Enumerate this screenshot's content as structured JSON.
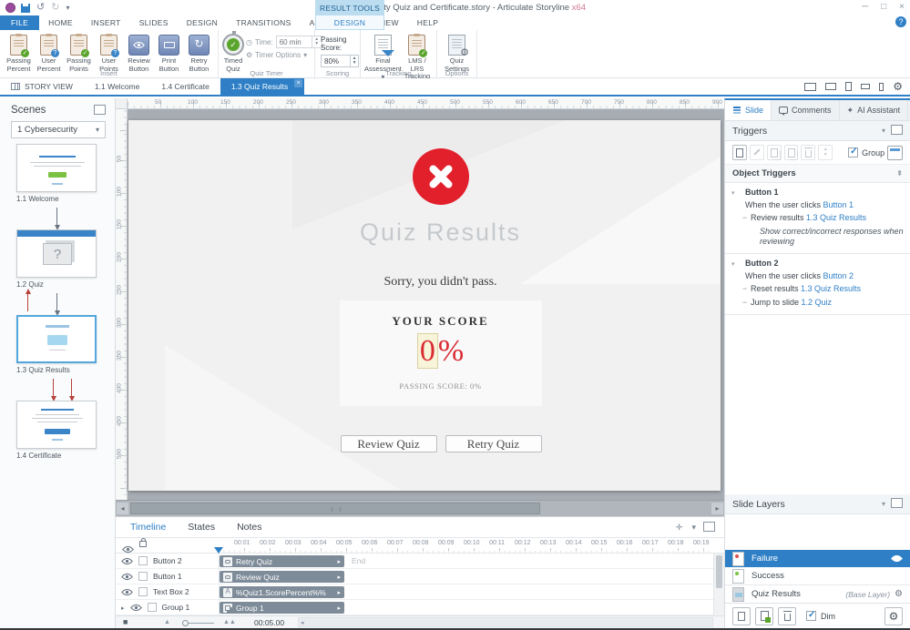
{
  "titlebar": {
    "title": "FP Cybersecurity Quiz and Certificate.story - Articulate Storyline",
    "title_suffix": "x64",
    "contextual_tab": "RESULT TOOLS",
    "window_buttons": {
      "minimize": "─",
      "maximize": "□",
      "close": "×"
    },
    "help_icon": "?"
  },
  "menu": {
    "tabs": [
      "FILE",
      "HOME",
      "INSERT",
      "SLIDES",
      "DESIGN",
      "TRANSITIONS",
      "ANIMATIONS",
      "VIEW",
      "HELP"
    ],
    "contextual_tab": "DESIGN"
  },
  "ribbon": {
    "insert": {
      "group_label": "Insert",
      "items": [
        {
          "line1": "Passing",
          "line2": "Percent",
          "icon": "clipboard-check"
        },
        {
          "line1": "User",
          "line2": "Percent",
          "icon": "clipboard-question"
        },
        {
          "line1": "Passing",
          "line2": "Points",
          "icon": "clipboard-check"
        },
        {
          "line1": "User",
          "line2": "Points",
          "icon": "clipboard-question"
        },
        {
          "line1": "Review",
          "line2": "Button",
          "icon": "eye-button"
        },
        {
          "line1": "Print",
          "line2": "Button",
          "icon": "print-button"
        },
        {
          "line1": "Retry",
          "line2": "Button",
          "icon": "retry-button"
        }
      ]
    },
    "quiz_timer": {
      "group_label": "Quiz Timer",
      "timed_quiz": "Timed Quiz",
      "time_label": "Time:",
      "time_value": "60 min",
      "timer_options": "Timer Options"
    },
    "scoring": {
      "group_label": "Scoring",
      "passing_score_label": "Passing Score:",
      "passing_score_value": "80%"
    },
    "tracking": {
      "group_label": "Tracking",
      "final_line1": "Final",
      "final_line2": "Assessment",
      "lms_line1": "LMS / LRS",
      "lms_line2": "Tracking"
    },
    "options": {
      "group_label": "Options",
      "quiz_settings_line1": "Quiz",
      "quiz_settings_line2": "Settings"
    }
  },
  "doc_tabs": {
    "story_view": "STORY VIEW",
    "tabs": [
      "1.1 Welcome",
      "1.4 Certificate"
    ],
    "active_tab": "1.3 Quiz Results",
    "close_glyph": "×"
  },
  "scenes": {
    "title": "Scenes",
    "dropdown_value": "1 Cybersecurity",
    "slides": [
      {
        "label": "1.1 Welcome",
        "type": "welcome"
      },
      {
        "label": "1.2 Quiz",
        "type": "quiz"
      },
      {
        "label": "1.3 Quiz Results",
        "type": "results",
        "selected": true
      },
      {
        "label": "1.4 Certificate",
        "type": "cert"
      }
    ]
  },
  "canvas": {
    "ruler_h": [
      "50",
      "100",
      "150",
      "200",
      "250",
      "300",
      "350",
      "400",
      "450",
      "500",
      "550",
      "600",
      "650",
      "700",
      "750",
      "800",
      "850",
      "900"
    ],
    "ruler_v": [
      "50",
      "100",
      "150",
      "200",
      "250",
      "300",
      "350",
      "400",
      "450",
      "500"
    ]
  },
  "slide": {
    "title": "Quiz Results",
    "message": "Sorry, you didn't pass.",
    "score_label": "YOUR SCORE",
    "score_value_highlight": "0",
    "score_value_rest": "%",
    "passing_line": "PASSING SCORE: 0%",
    "review_button": "Review Quiz",
    "retry_button": "Retry Quiz"
  },
  "right_panel": {
    "tabs": [
      "Slide",
      "Comments",
      "AI Assistant"
    ],
    "triggers_title": "Triggers",
    "group_checkbox_label": "Group",
    "object_triggers_title": "Object Triggers",
    "sections": [
      {
        "title": "Button 1",
        "lines": [
          {
            "kind": "event",
            "text": "When the user clicks ",
            "link": "Button 1"
          },
          {
            "kind": "action",
            "text": "Review results ",
            "link": "1.3 Quiz Results"
          },
          {
            "kind": "note",
            "text": "Show correct/incorrect responses when reviewing"
          }
        ]
      },
      {
        "title": "Button 2",
        "lines": [
          {
            "kind": "event",
            "text": "When the user clicks ",
            "link": "Button 2"
          },
          {
            "kind": "action",
            "text": "Reset results ",
            "link": "1.3 Quiz Results"
          },
          {
            "kind": "action",
            "text": "Jump to slide ",
            "link": "1.2 Quiz"
          }
        ]
      }
    ]
  },
  "slide_layers": {
    "title": "Slide Layers",
    "layers": [
      {
        "name": "Failure",
        "selected": true,
        "dot_color": "#d9534f",
        "eye": true
      },
      {
        "name": "Success",
        "selected": false,
        "dot_color": "#7bc142",
        "eye": false
      },
      {
        "name": "Quiz Results",
        "selected": false,
        "base": true,
        "badge": "(Base Layer)",
        "gear": true
      }
    ],
    "dim_checkbox_label": "Dim"
  },
  "timeline": {
    "tabs": [
      "Timeline",
      "States",
      "Notes"
    ],
    "active_tab": "Timeline",
    "ticks": [
      "00:01",
      "00:02",
      "00:03",
      "00:04",
      "00:05",
      "00:06",
      "00:07",
      "00:08",
      "00:09",
      "00:10",
      "00:11",
      "00:12",
      "00:13",
      "00:14",
      "00:15",
      "00:16",
      "00:17",
      "00:18",
      "00:19"
    ],
    "end_label": "End",
    "duration": "00:05.00",
    "rows": [
      {
        "name": "Button 2",
        "bar_label": "Retry Quiz",
        "icon": "button",
        "expand": false
      },
      {
        "name": "Button 1",
        "bar_label": "Review Quiz",
        "icon": "button",
        "expand": false
      },
      {
        "name": "Text Box 2",
        "bar_label": "%Quiz1.ScorePercent%%",
        "icon": "text",
        "expand": false
      },
      {
        "name": "Group 1",
        "bar_label": "Group 1",
        "icon": "group",
        "expand": true
      }
    ]
  },
  "colors": {
    "accent_blue": "#2e7fc6",
    "contextual_tab_bg": "#bcdcf0",
    "failure_red": "#e2202c",
    "timeline_bar": "#7e8b99",
    "canvas_gray": "#a7adb4"
  }
}
